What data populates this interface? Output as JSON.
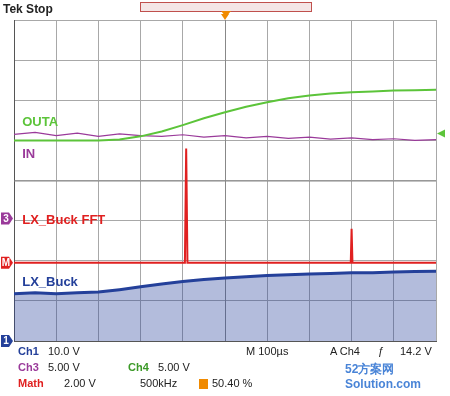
{
  "header": {
    "title": "Tek Stop"
  },
  "chart_data": {
    "type": "line",
    "xlim": [
      0,
      10
    ],
    "ylim": [
      -4,
      4
    ],
    "xticks": [
      0,
      1,
      2,
      3,
      4,
      5,
      6,
      7,
      8,
      9,
      10
    ],
    "yticks": [
      -4,
      -3,
      -2,
      -1,
      0,
      1,
      2,
      3,
      4
    ],
    "grid": true,
    "tick_labels": false,
    "x": [
      0,
      0.5,
      1,
      1.5,
      2,
      2.5,
      3,
      3.5,
      4,
      4.5,
      5,
      5.5,
      6,
      6.5,
      7,
      7.5,
      8,
      8.5,
      9,
      9.5,
      10
    ],
    "series": [
      {
        "name": "OUTA",
        "color": "#5cc43a",
        "values": [
          1.0,
          1.0,
          1.0,
          1.0,
          1.0,
          1.02,
          1.1,
          1.22,
          1.38,
          1.55,
          1.7,
          1.84,
          1.95,
          2.05,
          2.12,
          2.17,
          2.2,
          2.22,
          2.24,
          2.25,
          2.26
        ]
      },
      {
        "name": "IN",
        "color": "#9a3a9a",
        "values": [
          1.15,
          1.2,
          1.12,
          1.18,
          1.1,
          1.16,
          1.12,
          1.1,
          1.14,
          1.08,
          1.12,
          1.06,
          1.1,
          1.05,
          1.08,
          1.03,
          1.06,
          1.02,
          1.04,
          1.0,
          1.02
        ]
      },
      {
        "name": "LX_Buck FFT",
        "color": "#e02020",
        "x": [
          0,
          4.05,
          4.08,
          4.11,
          7.98,
          8.0,
          8.02,
          10
        ],
        "values": [
          -2.05,
          -2.05,
          0.8,
          -2.05,
          -2.05,
          -1.2,
          -2.05,
          -2.05
        ]
      },
      {
        "name": "LX_Buck",
        "color": "#24409a",
        "values": [
          -2.82,
          -2.8,
          -2.82,
          -2.8,
          -2.78,
          -2.72,
          -2.65,
          -2.58,
          -2.52,
          -2.47,
          -2.43,
          -2.4,
          -2.37,
          -2.35,
          -2.33,
          -2.32,
          -2.3,
          -2.3,
          -2.28,
          -2.27,
          -2.26
        ]
      }
    ],
    "channel_markers": [
      {
        "label": "3",
        "value": -0.95,
        "color": "#9a3a9a"
      },
      {
        "label": "M",
        "value": -2.05,
        "color": "#e02020"
      },
      {
        "label": "1",
        "value": -4,
        "color": "#24409a"
      }
    ],
    "trigger": {
      "x": 5,
      "y": 1.17,
      "color": "#5cc43a"
    }
  },
  "readout": {
    "rows": [
      [
        {
          "text": "Ch1",
          "color": "#24409a"
        },
        {
          "text": "10.0 V"
        },
        {
          "text": "M 100µs"
        },
        {
          "text": "A Ch4"
        },
        {
          "text": "ƒ"
        },
        {
          "text": "14.2 V"
        }
      ],
      [
        {
          "text": "Ch3",
          "color": "#9a3a9a"
        },
        {
          "text": "5.00 V"
        },
        {
          "text": "Ch4",
          "color": "#3c9a28"
        },
        {
          "text": "5.00 V"
        }
      ],
      [
        {
          "text": "Math",
          "color": "#e02020"
        },
        {
          "text": "2.00 V"
        },
        {
          "text": "500kHz"
        },
        {
          "text": "50.40 %"
        }
      ]
    ]
  },
  "watermark": [
    "52方案网",
    "Solution.com"
  ]
}
